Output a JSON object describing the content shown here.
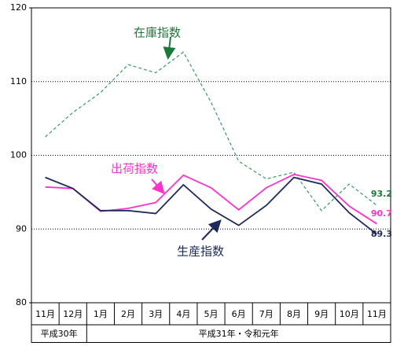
{
  "chart_data": {
    "type": "line",
    "categories": [
      "11月",
      "12月",
      "1月",
      "2月",
      "3月",
      "4月",
      "5月",
      "6月",
      "7月",
      "8月",
      "9月",
      "10月",
      "11月"
    ],
    "x_groups": [
      {
        "label": "平成30年",
        "span": 2
      },
      {
        "label": "平成31年・令和元年",
        "span": 11
      }
    ],
    "series": [
      {
        "name": "在庫指数",
        "color": "#339966",
        "dash": true,
        "values": [
          102.5,
          105.8,
          108.5,
          112.3,
          111.2,
          114.0,
          107.2,
          99.2,
          96.8,
          97.7,
          92.5,
          96.1,
          93.2
        ]
      },
      {
        "name": "出荷指数",
        "color": "#ff33cc",
        "dash": false,
        "values": [
          95.7,
          95.5,
          92.4,
          92.8,
          93.6,
          97.3,
          95.6,
          92.6,
          95.6,
          97.4,
          96.6,
          93.1,
          90.7
        ]
      },
      {
        "name": "生産指数",
        "color": "#1f2a5c",
        "dash": false,
        "values": [
          97.0,
          95.5,
          92.5,
          92.5,
          92.1,
          96.0,
          92.7,
          90.5,
          93.2,
          97.0,
          96.1,
          92.2,
          89.3
        ]
      }
    ],
    "ylim": [
      80,
      120
    ],
    "yticks": [
      80,
      90,
      100,
      110,
      120
    ],
    "grid": true
  }
}
